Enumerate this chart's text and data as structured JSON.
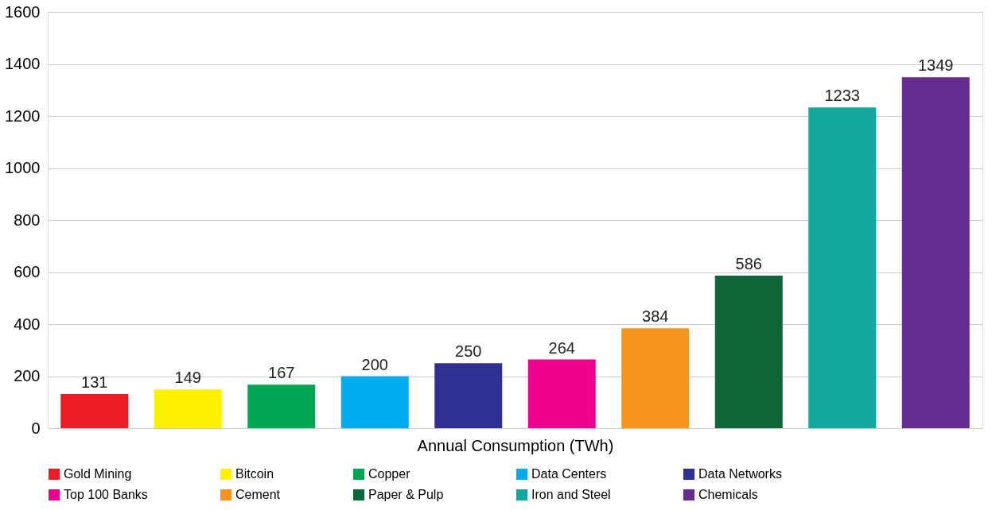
{
  "chart_data": {
    "type": "bar",
    "xlabel": "Annual Consumption (TWh)",
    "categories": [
      null,
      null,
      null,
      null,
      null,
      null,
      null,
      null,
      null,
      null
    ],
    "series": [
      {
        "name": "Gold Mining",
        "color": "#ed1c24",
        "values": [
          131,
          null,
          null,
          null,
          null,
          null,
          null,
          null,
          null,
          null
        ]
      },
      {
        "name": "Bitcoin",
        "color": "#fff200",
        "values": [
          null,
          149,
          null,
          null,
          null,
          null,
          null,
          null,
          null,
          null
        ]
      },
      {
        "name": "Copper",
        "color": "#00a651",
        "values": [
          null,
          null,
          167,
          null,
          null,
          null,
          null,
          null,
          null,
          null
        ]
      },
      {
        "name": "Data Centers",
        "color": "#00aeef",
        "values": [
          null,
          null,
          null,
          200,
          null,
          null,
          null,
          null,
          null,
          null
        ]
      },
      {
        "name": "Data Networks",
        "color": "#2e3192",
        "values": [
          null,
          null,
          null,
          null,
          250,
          null,
          null,
          null,
          null,
          null
        ]
      },
      {
        "name": "Top 100 Banks",
        "color": "#ec008c",
        "values": [
          null,
          null,
          null,
          null,
          null,
          264,
          null,
          null,
          null,
          null
        ]
      },
      {
        "name": "Cement",
        "color": "#f7941d",
        "values": [
          null,
          null,
          null,
          null,
          null,
          null,
          384,
          null,
          null,
          null
        ]
      },
      {
        "name": "Paper & Pulp",
        "color": "#0c6638",
        "values": [
          null,
          null,
          null,
          null,
          null,
          null,
          null,
          586,
          null,
          null
        ]
      },
      {
        "name": "Iron and Steel",
        "color": "#13a89e",
        "values": [
          null,
          null,
          null,
          null,
          null,
          null,
          null,
          null,
          1233,
          null
        ]
      },
      {
        "name": "Chemicals",
        "color": "#662d91",
        "values": [
          null,
          null,
          null,
          null,
          null,
          null,
          null,
          null,
          null,
          1349
        ]
      }
    ],
    "ylim": [
      0,
      1600
    ],
    "yticks": [
      0,
      200,
      400,
      600,
      800,
      1000,
      1200,
      1400,
      1600
    ],
    "grid": "y",
    "legend": "bottom",
    "tick_labels": "y",
    "data_labels": true
  }
}
